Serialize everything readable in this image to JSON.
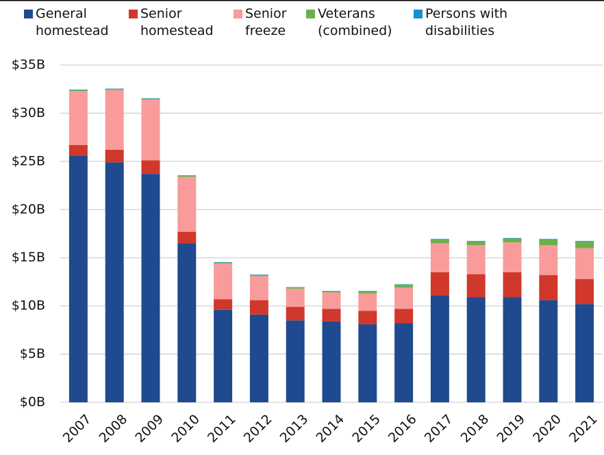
{
  "chart_data": {
    "type": "stacked_bar",
    "categories": [
      "2007",
      "2008",
      "2009",
      "2010",
      "2011",
      "2012",
      "2013",
      "2014",
      "2015",
      "2016",
      "2017",
      "2018",
      "2019",
      "2020",
      "2021"
    ],
    "series": [
      {
        "name": "General homestead",
        "color": "#1f4a8f",
        "values": [
          25.6,
          24.9,
          23.7,
          16.5,
          9.6,
          9.1,
          8.5,
          8.4,
          8.1,
          8.2,
          11.1,
          10.9,
          10.9,
          10.6,
          10.2
        ]
      },
      {
        "name": "Senior homestead",
        "color": "#d0382b",
        "values": [
          1.1,
          1.3,
          1.4,
          1.2,
          1.1,
          1.5,
          1.4,
          1.3,
          1.4,
          1.5,
          2.4,
          2.4,
          2.6,
          2.6,
          2.6
        ]
      },
      {
        "name": "Senior freeze",
        "color": "#f99b9b",
        "values": [
          5.6,
          6.2,
          6.3,
          5.7,
          3.7,
          2.5,
          1.9,
          1.7,
          1.8,
          2.2,
          3.0,
          3.0,
          3.1,
          3.1,
          3.2
        ]
      },
      {
        "name": "Veterans (combined)",
        "color": "#6ab04c",
        "values": [
          0.1,
          0.1,
          0.1,
          0.1,
          0.1,
          0.1,
          0.1,
          0.1,
          0.2,
          0.3,
          0.4,
          0.4,
          0.4,
          0.6,
          0.7
        ]
      },
      {
        "name": "Persons with disabilities",
        "color": "#1a8fd0",
        "values": [
          0.05,
          0.05,
          0.05,
          0.05,
          0.05,
          0.05,
          0.05,
          0.05,
          0.05,
          0.05,
          0.05,
          0.05,
          0.05,
          0.05,
          0.05
        ]
      }
    ],
    "ylim": [
      0,
      35
    ],
    "yticks": [
      {
        "value": 0,
        "label": "$0B"
      },
      {
        "value": 5,
        "label": "$5B"
      },
      {
        "value": 10,
        "label": "$10B"
      },
      {
        "value": 15,
        "label": "$15B"
      },
      {
        "value": 20,
        "label": "$20B"
      },
      {
        "value": 25,
        "label": "$25B"
      },
      {
        "value": 30,
        "label": "$30B"
      },
      {
        "value": 35,
        "label": "$35B"
      }
    ],
    "grid": true,
    "legend": "top"
  }
}
